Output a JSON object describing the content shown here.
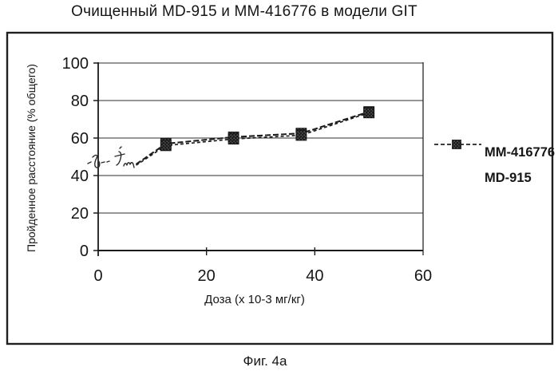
{
  "page": {
    "title": "Очищенный MD-915 и ММ-416776 в модели GIT",
    "caption": "Фиг. 4а"
  },
  "colors": {
    "ink": "#1a1a1a",
    "paper": "#ffffff",
    "marker_fill": "#1c1c1c"
  },
  "chart_data": {
    "type": "line",
    "title": "Очищенный MD-915 и ММ-416776 в модели GIT",
    "xlabel": "Доза (х 10-3 мг/кг)",
    "ylabel": "Пройденное расстояние  (% общего)",
    "xlim": [
      0,
      60
    ],
    "ylim": [
      0,
      100
    ],
    "x_ticks": [
      0,
      20,
      40,
      60
    ],
    "y_ticks": [
      0,
      20,
      40,
      60,
      80,
      100
    ],
    "grid": true,
    "legend_position": "right-inside-frame",
    "annotation": "handwritten scribble near y-axis at ~45-48% before first data marker",
    "series": [
      {
        "name": "MM-416776",
        "marker": "filled-square",
        "line_style": "dashed",
        "x": [
          7,
          12.5,
          25,
          37.5,
          50
        ],
        "y": [
          46,
          57,
          60.5,
          62.5,
          74
        ],
        "first_marker_index": 1
      },
      {
        "name": "MD-915",
        "marker": "filled-square",
        "line_style": "dashed",
        "x": [
          7,
          12.5,
          25,
          37.5,
          50
        ],
        "y": [
          45.5,
          56,
          59.5,
          61.5,
          73.5
        ],
        "first_marker_index": 1
      }
    ]
  }
}
